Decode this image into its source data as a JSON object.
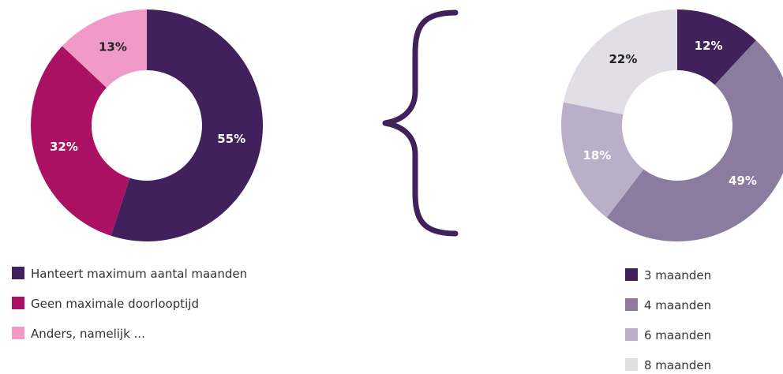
{
  "chart_data": [
    {
      "type": "pie",
      "variant": "donut",
      "categories": [
        "Hanteert maximum aantal maanden",
        "Geen maximale doorlooptijd",
        "Anders, namelijk ..."
      ],
      "values": [
        55,
        32,
        13
      ],
      "value_labels": [
        "55%",
        "32%",
        "13%"
      ],
      "colors": [
        "#40215c",
        "#ab1163",
        "#f19ac7"
      ],
      "label_colors": [
        "#ffffff",
        "#ffffff",
        "#222222"
      ],
      "legend": {
        "position": "bottom-left",
        "items": [
          "Hanteert maximum aantal maanden",
          "Geen maximale doorlooptijd",
          "Anders, namelijk ..."
        ]
      },
      "start": "top",
      "direction": "clockwise"
    },
    {
      "type": "pie",
      "variant": "donut",
      "categories": [
        "3 maanden",
        "4 maanden",
        "6 maanden",
        "8 maanden"
      ],
      "values": [
        12,
        49,
        18,
        22
      ],
      "value_labels": [
        "12%",
        "49%",
        "18%",
        "22%"
      ],
      "colors": [
        "#40215c",
        "#8b7b9f",
        "#b9afc8",
        "#e1dee6"
      ],
      "label_colors": [
        "#ffffff",
        "#ffffff",
        "#ffffff",
        "#222222"
      ],
      "legend": {
        "position": "bottom-right",
        "items": [
          "3 maanden",
          "4 maanden",
          "6 maanden",
          "8 maanden"
        ]
      },
      "start": "top",
      "direction": "clockwise"
    }
  ],
  "colors": {
    "brace": "#40215c"
  },
  "icons": {
    "connector": "curly-brace"
  }
}
